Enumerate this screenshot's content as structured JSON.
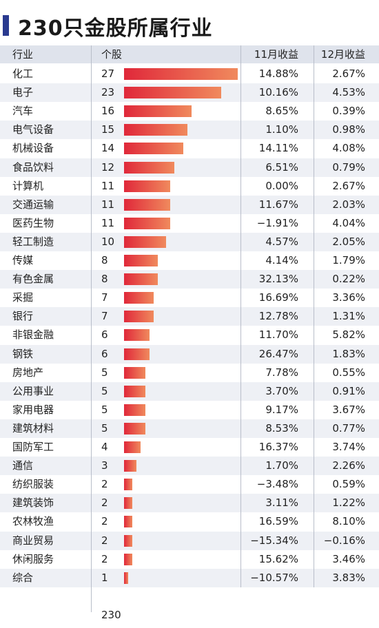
{
  "title": "230只金股所属行业",
  "headers": {
    "industry": "行业",
    "count": "个股",
    "nov": "11月收益",
    "dec": "12月收益"
  },
  "total": "230",
  "colors": {
    "title_accent": "#2a3a8f",
    "bar_start": "#e0283a",
    "bar_end": "#f08a5d",
    "header_bg": "#dfe3ec",
    "row_alt_bg": "#eef0f5"
  },
  "chart_data": {
    "type": "table",
    "title": "230只金股所属行业",
    "columns": [
      "行业",
      "个股",
      "11月收益",
      "12月收益"
    ],
    "rows": [
      {
        "industry": "化工",
        "count": 27,
        "nov": "14.88%",
        "dec": "2.67%"
      },
      {
        "industry": "电子",
        "count": 23,
        "nov": "10.16%",
        "dec": "4.53%"
      },
      {
        "industry": "汽车",
        "count": 16,
        "nov": "8.65%",
        "dec": "0.39%"
      },
      {
        "industry": "电气设备",
        "count": 15,
        "nov": "1.10%",
        "dec": "0.98%"
      },
      {
        "industry": "机械设备",
        "count": 14,
        "nov": "14.11%",
        "dec": "4.08%"
      },
      {
        "industry": "食品饮料",
        "count": 12,
        "nov": "6.51%",
        "dec": "0.79%"
      },
      {
        "industry": "计算机",
        "count": 11,
        "nov": "0.00%",
        "dec": "2.67%"
      },
      {
        "industry": "交通运输",
        "count": 11,
        "nov": "11.67%",
        "dec": "2.03%"
      },
      {
        "industry": "医药生物",
        "count": 11,
        "nov": "-1.91%",
        "dec": "4.04%"
      },
      {
        "industry": "轻工制造",
        "count": 10,
        "nov": "4.57%",
        "dec": "2.05%"
      },
      {
        "industry": "传媒",
        "count": 8,
        "nov": "4.14%",
        "dec": "1.79%"
      },
      {
        "industry": "有色金属",
        "count": 8,
        "nov": "32.13%",
        "dec": "0.22%"
      },
      {
        "industry": "采掘",
        "count": 7,
        "nov": "16.69%",
        "dec": "3.36%"
      },
      {
        "industry": "银行",
        "count": 7,
        "nov": "12.78%",
        "dec": "1.31%"
      },
      {
        "industry": "非银金融",
        "count": 6,
        "nov": "11.70%",
        "dec": "5.82%"
      },
      {
        "industry": "钢铁",
        "count": 6,
        "nov": "26.47%",
        "dec": "1.83%"
      },
      {
        "industry": "房地产",
        "count": 5,
        "nov": "7.78%",
        "dec": "0.55%"
      },
      {
        "industry": "公用事业",
        "count": 5,
        "nov": "3.70%",
        "dec": "0.91%"
      },
      {
        "industry": "家用电器",
        "count": 5,
        "nov": "9.17%",
        "dec": "3.67%"
      },
      {
        "industry": "建筑材料",
        "count": 5,
        "nov": "8.53%",
        "dec": "0.77%"
      },
      {
        "industry": "国防军工",
        "count": 4,
        "nov": "16.37%",
        "dec": "3.74%"
      },
      {
        "industry": "通信",
        "count": 3,
        "nov": "1.70%",
        "dec": "2.26%"
      },
      {
        "industry": "纺织服装",
        "count": 2,
        "nov": "-3.48%",
        "dec": "0.59%"
      },
      {
        "industry": "建筑装饰",
        "count": 2,
        "nov": "3.11%",
        "dec": "1.22%"
      },
      {
        "industry": "农林牧渔",
        "count": 2,
        "nov": "16.59%",
        "dec": "8.10%"
      },
      {
        "industry": "商业贸易",
        "count": 2,
        "nov": "-15.34%",
        "dec": "-0.16%"
      },
      {
        "industry": "休闲服务",
        "count": 2,
        "nov": "15.62%",
        "dec": "3.46%"
      },
      {
        "industry": "综合",
        "count": 1,
        "nov": "-10.57%",
        "dec": "3.83%"
      }
    ],
    "bar_max": 27
  }
}
